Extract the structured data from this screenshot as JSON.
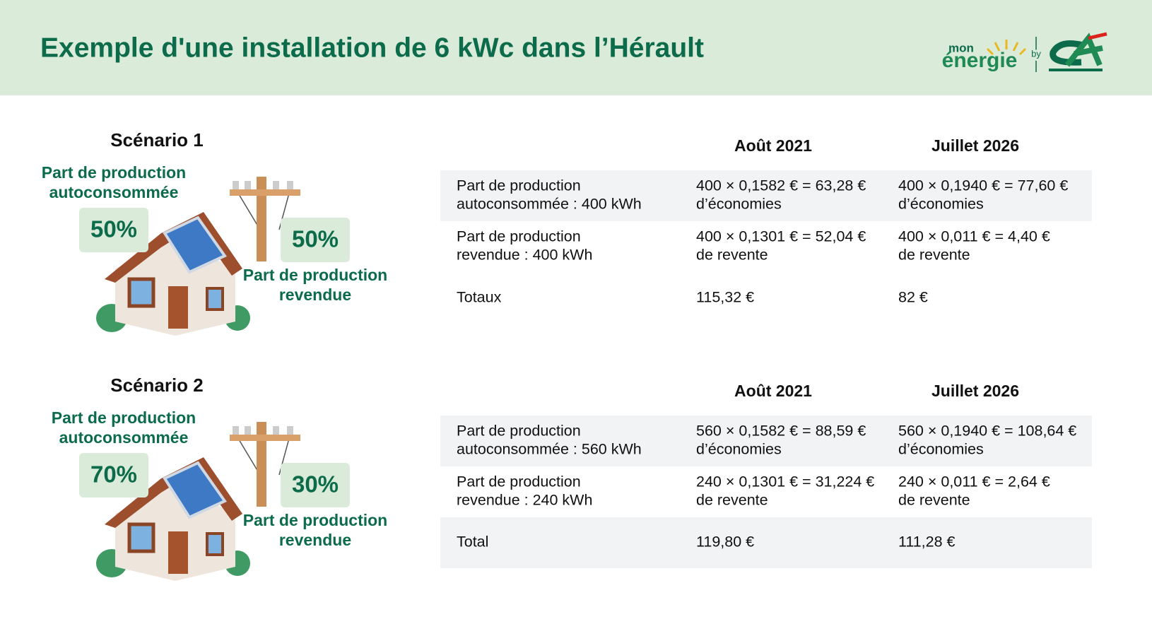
{
  "header": {
    "title": "Exemple d'une installation de 6 kWc dans l’Hérault",
    "logo": {
      "top": "mon",
      "main": "énergie",
      "by": "by"
    }
  },
  "scenarios": [
    {
      "title": "Scénario 1",
      "auto_label": "Part de production autoconsommée",
      "auto_pct": "50%",
      "sold_pct": "50%",
      "sold_label": "Part de production revendue",
      "table": {
        "columns": [
          "Août 2021",
          "Juillet 2026"
        ],
        "rows": [
          [
            [
              "Part de production",
              "autoconsommée : 400 kWh"
            ],
            [
              "400 × 0,1582 € = 63,28 €",
              "d’économies"
            ],
            [
              "400 × 0,1940 € = 77,60 €",
              "d’économies"
            ]
          ],
          [
            [
              "Part de production",
              "revendue : 400 kWh"
            ],
            [
              "400 × 0,1301 € = 52,04 €",
              "de revente"
            ],
            [
              "400 × 0,011 € = 4,40 €",
              "de revente"
            ]
          ],
          [
            [
              "Totaux"
            ],
            [
              "115,32 €"
            ],
            [
              "82 €"
            ]
          ]
        ]
      }
    },
    {
      "title": "Scénario 2",
      "auto_label": "Part de production autoconsommée",
      "auto_pct": "70%",
      "sold_pct": "30%",
      "sold_label": "Part de production revendue",
      "table": {
        "columns": [
          "Août 2021",
          "Juillet 2026"
        ],
        "rows": [
          [
            [
              "Part de production",
              "autoconsommée : 560 kWh"
            ],
            [
              "560 × 0,1582 € = 88,59 €",
              "d’économies"
            ],
            [
              "560 × 0,1940 € = 108,64 €",
              "d’économies"
            ]
          ],
          [
            [
              "Part de production",
              "revendue : 240 kWh"
            ],
            [
              "240 × 0,1301 € = 31,224 €",
              "de revente"
            ],
            [
              "240 × 0,011 € = 2,64 €",
              "de revente"
            ]
          ],
          [
            [
              "Total"
            ],
            [
              "119,80 €"
            ],
            [
              "111,28 €"
            ]
          ]
        ]
      }
    }
  ]
}
